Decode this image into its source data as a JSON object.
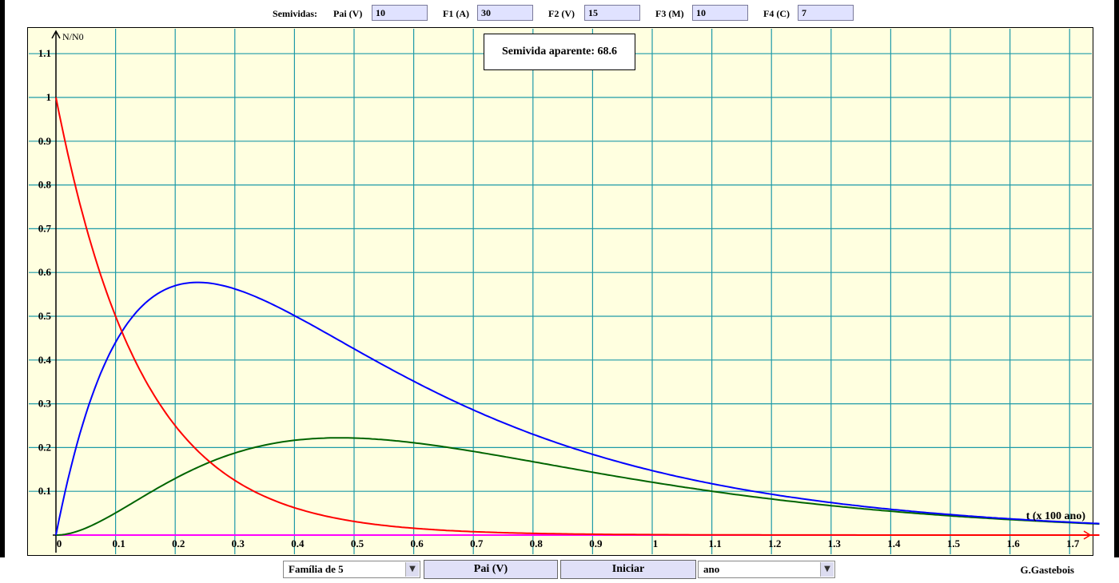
{
  "toolbar": {
    "semividas_label": "Semividas:",
    "fields": [
      {
        "label": "Pai (V)",
        "value": "10"
      },
      {
        "label": "F1 (A)",
        "value": "30"
      },
      {
        "label": "F2 (V)",
        "value": "15"
      },
      {
        "label": "F3 (M)",
        "value": "10"
      },
      {
        "label": "F4 (C)",
        "value": "7"
      }
    ]
  },
  "info_box": "Semivida aparente: 68.6",
  "colors": {
    "plot_bg": "#ffffe0",
    "grid": "#1e9aa8",
    "pai": "#ff0000",
    "f1": "#0000ff",
    "f2": "#006400",
    "f3": "#ff00ff",
    "f4": "#00e0e0"
  },
  "chart_data": {
    "type": "line",
    "ylabel": "N/N0",
    "xlabel": "t (x 100 ano)",
    "xlim": [
      0,
      1.75
    ],
    "ylim": [
      0,
      1.15
    ],
    "x_ticks": [
      "0",
      "0.1",
      "0.2",
      "0.3",
      "0.4",
      "0.5",
      "0.6",
      "0.7",
      "0.8",
      "0.9",
      "1",
      "1.1",
      "1.2",
      "1.3",
      "1.4",
      "1.5",
      "1.6",
      "1.7"
    ],
    "y_ticks": [
      "",
      "0.1",
      "0.2",
      "0.3",
      "0.4",
      "0.5",
      "0.6",
      "0.7",
      "0.8",
      "0.9",
      "1",
      "1.1"
    ],
    "grid": true,
    "series": [
      {
        "name": "Pai (V)",
        "half_life": 10,
        "color": "#ff0000"
      },
      {
        "name": "F1 (A)",
        "half_life": 30,
        "color": "#0000ff"
      },
      {
        "name": "F2 (V)",
        "half_life": 15,
        "color": "#006400"
      },
      {
        "name": "F3 (M)",
        "half_life": 10,
        "color": "#ff00ff"
      },
      {
        "name": "F4 (C)",
        "half_life": 7,
        "color": "#00e0e0"
      }
    ]
  },
  "bottom": {
    "family_select": "Família de 5",
    "pai_button": "Pai (V)",
    "start_button": "Iniciar",
    "unit_select": "ano",
    "credit": "G.Gastebois"
  }
}
